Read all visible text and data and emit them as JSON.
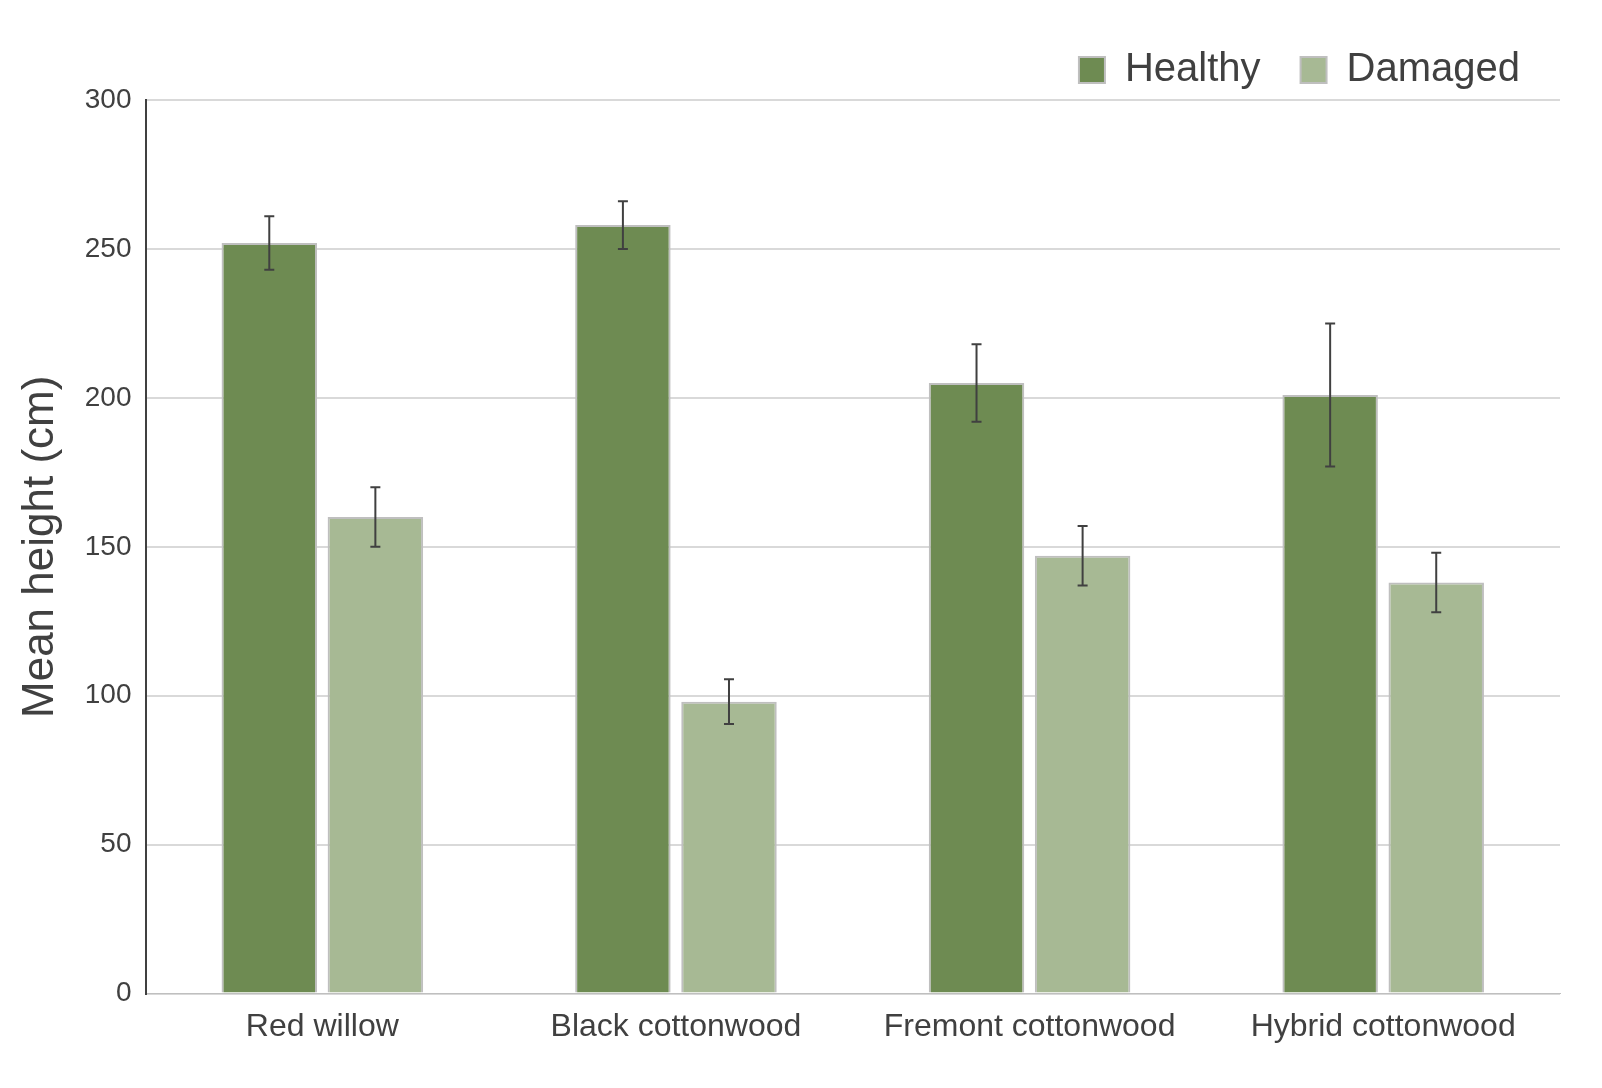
{
  "chart_data": {
    "type": "bar",
    "ylabel": "Mean height (cm)",
    "categories": [
      "Red willow",
      "Black cottonwood",
      "Fremont cottonwood",
      "Hybrid cottonwood"
    ],
    "series": [
      {
        "name": "Healthy",
        "color": "#6e8b52",
        "values": [
          252,
          258,
          205,
          201
        ],
        "errors": [
          9,
          8,
          13,
          24
        ]
      },
      {
        "name": "Damaged",
        "color": "#a7b994",
        "values": [
          160,
          98,
          147,
          138
        ],
        "errors": [
          10,
          7.5,
          10,
          10
        ]
      }
    ],
    "ylim": [
      0,
      300
    ],
    "yticks": [
      0,
      50,
      100,
      150,
      200,
      250,
      300
    ],
    "grid": "y",
    "legend": "top right"
  }
}
